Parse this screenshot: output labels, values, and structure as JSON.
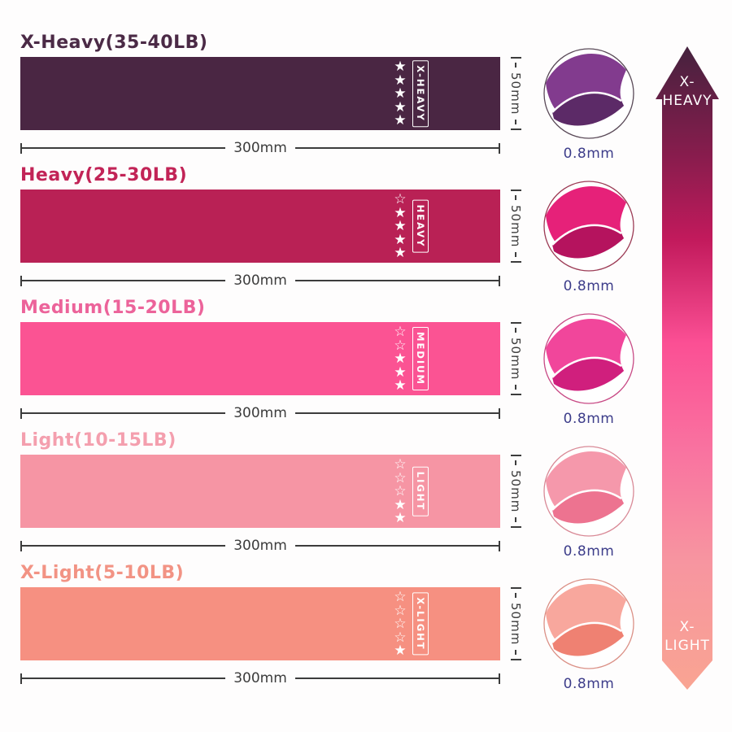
{
  "page_background": "#fefdfd",
  "icons": {
    "star_filled": "★",
    "star_outline": "☆"
  },
  "dimension_color": "#3c3c3c",
  "thickness_color": "#3d3d8a",
  "bands": [
    {
      "title": "X-Heavy(35-40LB)",
      "title_color": "#4b2a46",
      "band_color": "#4a2643",
      "level_label": "X-HEAVY",
      "stars_outline": 0,
      "stars_filled": 5,
      "width_label": "300mm",
      "height_label": "50mm",
      "thickness_label": "0.8mm",
      "roll": {
        "face": "#823b8e",
        "side": "#5c2a67",
        "ring": "#5a4a58"
      }
    },
    {
      "title": "Heavy(25-30LB)",
      "title_color": "#c22457",
      "band_color": "#b92155",
      "level_label": "HEAVY",
      "stars_outline": 1,
      "stars_filled": 4,
      "width_label": "300mm",
      "height_label": "50mm",
      "thickness_label": "0.8mm",
      "roll": {
        "face": "#e62179",
        "side": "#b5135e",
        "ring": "#9c3b55"
      }
    },
    {
      "title": "Medium(15-20LB)",
      "title_color": "#ec639a",
      "band_color": "#fb5393",
      "level_label": "MEDIUM",
      "stars_outline": 2,
      "stars_filled": 3,
      "width_label": "300mm",
      "height_label": "50mm",
      "thickness_label": "0.8mm",
      "roll": {
        "face": "#f1469b",
        "side": "#d01f7d",
        "ring": "#c84a85"
      }
    },
    {
      "title": "Light(10-15LB)",
      "title_color": "#f49fae",
      "band_color": "#f695a4",
      "level_label": "LIGHT",
      "stars_outline": 3,
      "stars_filled": 2,
      "width_label": "300mm",
      "height_label": "50mm",
      "thickness_label": "0.8mm",
      "roll": {
        "face": "#f598ab",
        "side": "#ed7390",
        "ring": "#d98a97"
      }
    },
    {
      "title": "X-Light(5-10LB)",
      "title_color": "#f29384",
      "band_color": "#f69081",
      "level_label": "X-LIGHT",
      "stars_outline": 4,
      "stars_filled": 1,
      "width_label": "300mm",
      "height_label": "50mm",
      "thickness_label": "0.8mm",
      "roll": {
        "face": "#f8a79d",
        "side": "#ef8172",
        "ring": "#db9187"
      }
    }
  ],
  "scale": {
    "top_line1": "X-",
    "top_line2": "HEAVY",
    "bottom_line1": "X-",
    "bottom_line2": "LIGHT",
    "gradient": [
      {
        "offset": 0,
        "color": "#45223e"
      },
      {
        "offset": 0.18,
        "color": "#8c1c4e"
      },
      {
        "offset": 0.3,
        "color": "#c21a5c"
      },
      {
        "offset": 0.46,
        "color": "#fb4f94"
      },
      {
        "offset": 0.63,
        "color": "#f973a0"
      },
      {
        "offset": 0.8,
        "color": "#f795a0"
      },
      {
        "offset": 1,
        "color": "#f9a492"
      }
    ]
  }
}
